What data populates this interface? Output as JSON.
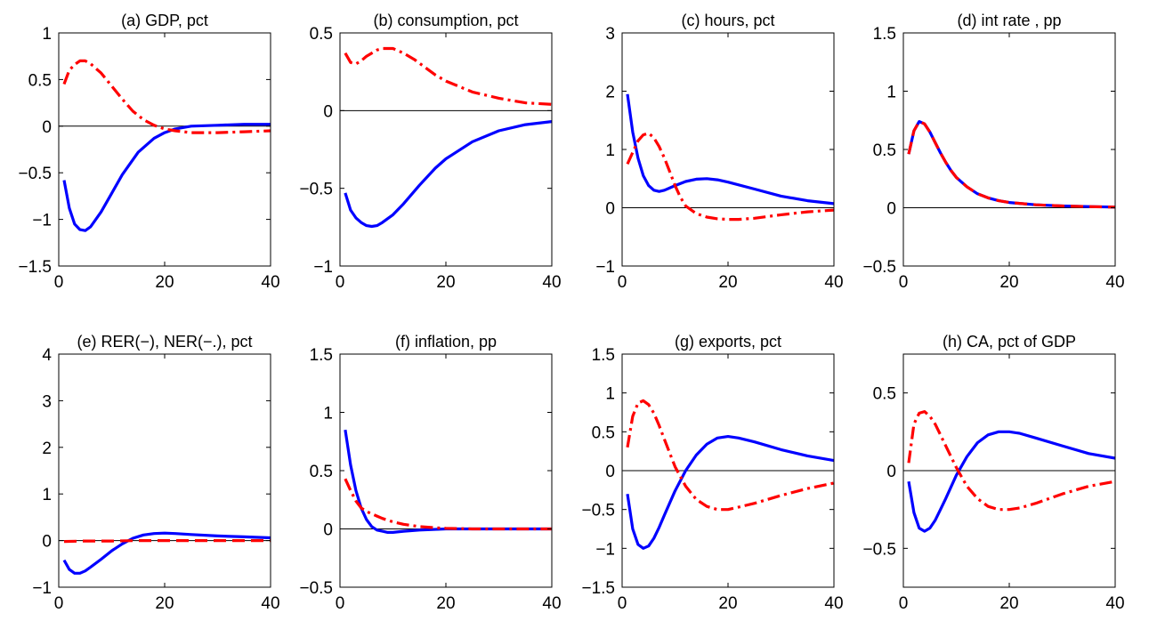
{
  "chart_data": [
    {
      "type": "line",
      "title": "(a) GDP, pct",
      "xlim": [
        0,
        40
      ],
      "ylim": [
        -1.5,
        1
      ],
      "xticks": [
        0,
        20,
        40
      ],
      "yticks": [
        -1.5,
        -1,
        -0.5,
        0,
        0.5,
        1
      ],
      "ytick_labels": [
        "−1.5",
        "−1",
        "−0.5",
        "0",
        "0.5",
        "1"
      ],
      "zero_line": true,
      "series": [
        {
          "style": "solid",
          "color": "#0000ff",
          "x": [
            1,
            2,
            3,
            4,
            5,
            6,
            8,
            10,
            12,
            15,
            18,
            20,
            22,
            25,
            30,
            35,
            40
          ],
          "y": [
            -0.58,
            -0.88,
            -1.05,
            -1.11,
            -1.12,
            -1.08,
            -0.92,
            -0.72,
            -0.52,
            -0.28,
            -0.13,
            -0.07,
            -0.03,
            0.0,
            0.01,
            0.02,
            0.02
          ]
        },
        {
          "style": "dashdot",
          "color": "#ff0000",
          "x": [
            1,
            2,
            3,
            4,
            5,
            6,
            8,
            10,
            12,
            14,
            16,
            18,
            20,
            22,
            25,
            30,
            35,
            40
          ],
          "y": [
            0.45,
            0.6,
            0.66,
            0.7,
            0.7,
            0.67,
            0.57,
            0.43,
            0.29,
            0.16,
            0.07,
            0.01,
            -0.03,
            -0.05,
            -0.07,
            -0.07,
            -0.06,
            -0.05
          ]
        }
      ]
    },
    {
      "type": "line",
      "title": "(b) consumption, pct",
      "xlim": [
        0,
        40
      ],
      "ylim": [
        -1,
        0.5
      ],
      "xticks": [
        0,
        20,
        40
      ],
      "yticks": [
        -1,
        -0.5,
        0,
        0.5
      ],
      "ytick_labels": [
        "−1",
        "−0.5",
        "0",
        "0.5"
      ],
      "zero_line": true,
      "series": [
        {
          "style": "solid",
          "color": "#0000ff",
          "x": [
            1,
            2,
            3,
            4,
            5,
            6,
            7,
            8,
            10,
            12,
            15,
            18,
            20,
            25,
            30,
            35,
            40
          ],
          "y": [
            -0.53,
            -0.64,
            -0.69,
            -0.72,
            -0.74,
            -0.745,
            -0.74,
            -0.72,
            -0.67,
            -0.6,
            -0.48,
            -0.37,
            -0.31,
            -0.2,
            -0.13,
            -0.09,
            -0.07
          ]
        },
        {
          "style": "dashdot",
          "color": "#ff0000",
          "x": [
            1,
            2,
            3,
            4,
            5,
            6,
            7,
            8,
            9,
            10,
            12,
            14,
            16,
            18,
            20,
            25,
            30,
            35,
            40
          ],
          "y": [
            0.37,
            0.31,
            0.3,
            0.32,
            0.35,
            0.37,
            0.39,
            0.4,
            0.4,
            0.4,
            0.37,
            0.33,
            0.28,
            0.23,
            0.19,
            0.12,
            0.08,
            0.05,
            0.04
          ]
        }
      ]
    },
    {
      "type": "line",
      "title": "(c) hours, pct",
      "xlim": [
        0,
        40
      ],
      "ylim": [
        -1,
        3
      ],
      "xticks": [
        0,
        20,
        40
      ],
      "yticks": [
        -1,
        0,
        1,
        2,
        3
      ],
      "ytick_labels": [
        "−1",
        "0",
        "1",
        "2",
        "3"
      ],
      "zero_line": true,
      "series": [
        {
          "style": "solid",
          "color": "#0000ff",
          "x": [
            1,
            2,
            3,
            4,
            5,
            6,
            7,
            8,
            10,
            12,
            14,
            16,
            18,
            20,
            25,
            30,
            35,
            40
          ],
          "y": [
            1.95,
            1.3,
            0.85,
            0.55,
            0.38,
            0.3,
            0.28,
            0.3,
            0.38,
            0.45,
            0.49,
            0.5,
            0.48,
            0.44,
            0.32,
            0.2,
            0.12,
            0.07
          ]
        },
        {
          "style": "dashdot",
          "color": "#ff0000",
          "x": [
            1,
            2,
            3,
            4,
            5,
            6,
            7,
            8,
            9,
            10,
            11,
            12,
            14,
            16,
            18,
            20,
            22,
            25,
            30,
            35,
            40
          ],
          "y": [
            0.75,
            0.95,
            1.15,
            1.25,
            1.28,
            1.2,
            1.05,
            0.85,
            0.62,
            0.38,
            0.18,
            0.03,
            -0.1,
            -0.16,
            -0.19,
            -0.2,
            -0.2,
            -0.18,
            -0.12,
            -0.07,
            -0.04
          ]
        }
      ]
    },
    {
      "type": "line",
      "title": "(d) int rate , pp",
      "xlim": [
        0,
        40
      ],
      "ylim": [
        -0.5,
        1.5
      ],
      "xticks": [
        0,
        20,
        40
      ],
      "yticks": [
        -0.5,
        0,
        0.5,
        1,
        1.5
      ],
      "ytick_labels": [
        "−0.5",
        "0",
        "0.5",
        "1",
        "1.5"
      ],
      "zero_line": true,
      "series": [
        {
          "style": "solid",
          "color": "#0000ff",
          "x": [
            1,
            2,
            3,
            4,
            5,
            6,
            7,
            8,
            9,
            10,
            12,
            14,
            16,
            18,
            20,
            25,
            30,
            35,
            40
          ],
          "y": [
            0.46,
            0.66,
            0.74,
            0.72,
            0.65,
            0.56,
            0.47,
            0.39,
            0.32,
            0.26,
            0.18,
            0.12,
            0.085,
            0.06,
            0.045,
            0.025,
            0.015,
            0.01,
            0.005
          ]
        },
        {
          "style": "dashed",
          "color": "#ff0000",
          "x": [
            1,
            2,
            3,
            4,
            5,
            6,
            7,
            8,
            9,
            10,
            12,
            14,
            16,
            18,
            20,
            25,
            30,
            35,
            40
          ],
          "y": [
            0.46,
            0.66,
            0.74,
            0.72,
            0.65,
            0.56,
            0.47,
            0.39,
            0.32,
            0.26,
            0.18,
            0.12,
            0.085,
            0.06,
            0.045,
            0.025,
            0.015,
            0.01,
            0.005
          ]
        }
      ]
    },
    {
      "type": "line",
      "title": "(e) RER(−), NER(−.), pct",
      "xlim": [
        0,
        40
      ],
      "ylim": [
        -1,
        4
      ],
      "xticks": [
        0,
        20,
        40
      ],
      "yticks": [
        -1,
        0,
        1,
        2,
        3,
        4
      ],
      "ytick_labels": [
        "−1",
        "0",
        "1",
        "2",
        "3",
        "4"
      ],
      "zero_line": true,
      "series": [
        {
          "style": "solid",
          "color": "#0000ff",
          "x": [
            1,
            2,
            3,
            4,
            5,
            6,
            8,
            10,
            12,
            14,
            16,
            18,
            20,
            22,
            25,
            30,
            35,
            40
          ],
          "y": [
            -0.42,
            -0.62,
            -0.7,
            -0.7,
            -0.65,
            -0.57,
            -0.4,
            -0.22,
            -0.07,
            0.05,
            0.12,
            0.15,
            0.16,
            0.15,
            0.13,
            0.1,
            0.08,
            0.06
          ]
        },
        {
          "style": "dashed",
          "color": "#ff0000",
          "x": [
            1,
            5,
            10,
            15,
            20,
            25,
            30,
            35,
            40
          ],
          "y": [
            -0.02,
            -0.01,
            -0.01,
            0.0,
            0.0,
            0.0,
            0.0,
            0.0,
            0.0
          ]
        }
      ]
    },
    {
      "type": "line",
      "title": "(f) inflation, pp",
      "xlim": [
        0,
        40
      ],
      "ylim": [
        -0.5,
        1.5
      ],
      "xticks": [
        0,
        20,
        40
      ],
      "yticks": [
        -0.5,
        0,
        0.5,
        1,
        1.5
      ],
      "ytick_labels": [
        "−0.5",
        "0",
        "0.5",
        "1",
        "1.5"
      ],
      "zero_line": true,
      "series": [
        {
          "style": "solid",
          "color": "#0000ff",
          "x": [
            1,
            2,
            3,
            4,
            5,
            6,
            7,
            8,
            9,
            10,
            12,
            15,
            20,
            25,
            30,
            35,
            40
          ],
          "y": [
            0.85,
            0.55,
            0.33,
            0.18,
            0.08,
            0.02,
            -0.01,
            -0.02,
            -0.03,
            -0.03,
            -0.02,
            -0.01,
            0.0,
            0.0,
            0.0,
            0.0,
            0.0
          ]
        },
        {
          "style": "dashdot",
          "color": "#ff0000",
          "x": [
            1,
            2,
            3,
            4,
            5,
            6,
            7,
            8,
            10,
            12,
            15,
            18,
            20,
            25,
            30,
            35,
            40
          ],
          "y": [
            0.43,
            0.33,
            0.24,
            0.18,
            0.15,
            0.13,
            0.11,
            0.09,
            0.06,
            0.04,
            0.02,
            0.01,
            0.005,
            0.0,
            0.0,
            0.0,
            0.0
          ]
        }
      ]
    },
    {
      "type": "line",
      "title": "(g) exports, pct",
      "xlim": [
        0,
        40
      ],
      "ylim": [
        -1.5,
        1.5
      ],
      "xticks": [
        0,
        20,
        40
      ],
      "yticks": [
        -1.5,
        -1,
        -0.5,
        0,
        0.5,
        1,
        1.5
      ],
      "ytick_labels": [
        "−1.5",
        "−1",
        "−0.5",
        "0",
        "0.5",
        "1",
        "1.5"
      ],
      "zero_line": true,
      "series": [
        {
          "style": "solid",
          "color": "#0000ff",
          "x": [
            1,
            2,
            3,
            4,
            5,
            6,
            7,
            8,
            10,
            12,
            14,
            16,
            18,
            20,
            22,
            25,
            30,
            35,
            40
          ],
          "y": [
            -0.3,
            -0.75,
            -0.95,
            -1.0,
            -0.97,
            -0.87,
            -0.73,
            -0.57,
            -0.26,
            0.0,
            0.2,
            0.34,
            0.42,
            0.44,
            0.42,
            0.37,
            0.27,
            0.19,
            0.13
          ]
        },
        {
          "style": "dashdot",
          "color": "#ff0000",
          "x": [
            1,
            2,
            3,
            4,
            5,
            6,
            7,
            8,
            10,
            12,
            14,
            16,
            18,
            20,
            22,
            25,
            30,
            35,
            40
          ],
          "y": [
            0.3,
            0.7,
            0.87,
            0.9,
            0.85,
            0.74,
            0.58,
            0.4,
            0.05,
            -0.2,
            -0.37,
            -0.46,
            -0.5,
            -0.5,
            -0.47,
            -0.42,
            -0.32,
            -0.23,
            -0.16
          ]
        }
      ]
    },
    {
      "type": "line",
      "title": "(h) CA, pct of GDP",
      "xlim": [
        0,
        40
      ],
      "ylim": [
        -0.75,
        0.75
      ],
      "xticks": [
        0,
        20,
        40
      ],
      "yticks": [
        -0.5,
        0,
        0.5
      ],
      "ytick_labels": [
        "−0.5",
        "0",
        "0.5"
      ],
      "zero_line": true,
      "series": [
        {
          "style": "solid",
          "color": "#0000ff",
          "x": [
            1,
            2,
            3,
            4,
            5,
            6,
            7,
            8,
            10,
            12,
            14,
            16,
            18,
            20,
            22,
            25,
            30,
            35,
            40
          ],
          "y": [
            -0.07,
            -0.27,
            -0.37,
            -0.39,
            -0.37,
            -0.32,
            -0.25,
            -0.18,
            -0.03,
            0.09,
            0.18,
            0.23,
            0.25,
            0.25,
            0.24,
            0.21,
            0.16,
            0.11,
            0.08
          ]
        },
        {
          "style": "dashdot",
          "color": "#ff0000",
          "x": [
            1,
            2,
            3,
            4,
            5,
            6,
            7,
            8,
            10,
            12,
            14,
            16,
            18,
            20,
            22,
            25,
            30,
            35,
            40
          ],
          "y": [
            0.05,
            0.3,
            0.37,
            0.38,
            0.35,
            0.3,
            0.23,
            0.16,
            0.02,
            -0.1,
            -0.18,
            -0.23,
            -0.25,
            -0.25,
            -0.24,
            -0.21,
            -0.15,
            -0.1,
            -0.07
          ]
        }
      ]
    }
  ]
}
